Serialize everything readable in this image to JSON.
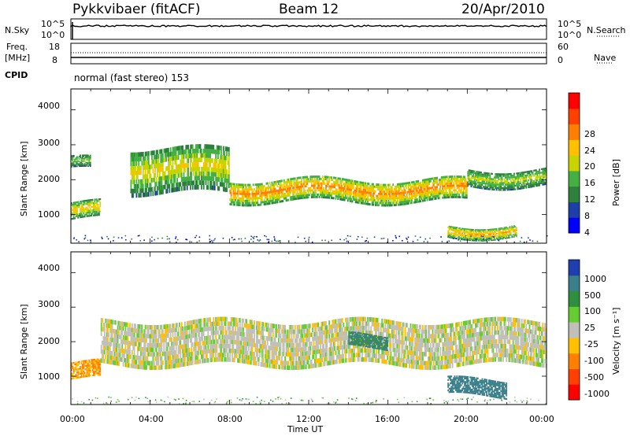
{
  "header": {
    "station": "Pykkvibaer (fitACF)",
    "beam": "Beam 12",
    "date": "20/Apr/2010"
  },
  "noise_panel": {
    "left_label": "N.Sky",
    "right_label": "N.Search",
    "left_ticks": [
      "10^5",
      "10^0"
    ],
    "right_ticks": [
      "10^5",
      "10^0"
    ]
  },
  "freq_panel": {
    "left_label_top": "Freq.",
    "left_label_unit": "[MHz]",
    "right_label": "Nave",
    "left_ticks": [
      "18",
      "8"
    ],
    "right_ticks": [
      "60",
      "0"
    ],
    "cpid_label": "CPID",
    "cpid_text": "normal (fast stereo) 153"
  },
  "chart_data": [
    {
      "type": "heatmap",
      "panel": "power",
      "ylabel": "Slant Range [km]",
      "ylim": [
        180,
        4600
      ],
      "yticks": [
        "1000",
        "2000",
        "3000",
        "4000"
      ],
      "xlim": [
        "00:00",
        "24:00"
      ],
      "colorbar_label": "Power [dB]",
      "colorbar_ticks": [
        "28",
        "24",
        "20",
        "16",
        "12",
        "8",
        "4"
      ],
      "colors": [
        "#0000ff",
        "#1e3fa8",
        "#2f7f3f",
        "#44b044",
        "#c8d400",
        "#ffc000",
        "#ff8000",
        "#ff4000",
        "#ff0000"
      ],
      "echo_bands": [
        {
          "t": [
            0.0,
            1.5
          ],
          "range": [
            850,
            1350
          ],
          "power": 20
        },
        {
          "t": [
            0.0,
            1.0
          ],
          "range": [
            2250,
            2600
          ],
          "power": 14
        },
        {
          "t": [
            3.0,
            8.0
          ],
          "range": [
            1600,
            2900
          ],
          "power": 18
        },
        {
          "t": [
            8.0,
            20.0
          ],
          "range": [
            1350,
            2000
          ],
          "power": 24
        },
        {
          "t": [
            20.0,
            24.0
          ],
          "range": [
            1800,
            2300
          ],
          "power": 16
        },
        {
          "t": [
            19.0,
            22.5
          ],
          "range": [
            350,
            700
          ],
          "power": 22
        }
      ]
    },
    {
      "type": "heatmap",
      "panel": "velocity",
      "ylabel": "Slant Range [km]",
      "ylim": [
        180,
        4600
      ],
      "yticks": [
        "1000",
        "2000",
        "3000",
        "4000"
      ],
      "xlabel": "Time UT",
      "xticks": [
        "00:00",
        "04:00",
        "08:00",
        "12:00",
        "16:00",
        "20:00",
        "00:00"
      ],
      "colorbar_label": "Velocity [m s⁻¹]",
      "colorbar_ticks": [
        "1000",
        "500",
        "100",
        "25",
        "-25",
        "-100",
        "-500",
        "-1000"
      ],
      "colors": [
        "#1f3fb0",
        "#3a7f8a",
        "#2f8f3f",
        "#66cc33",
        "#c0c0b8",
        "#ffc000",
        "#ff8000",
        "#ff4000",
        "#ff0000"
      ],
      "echo_bands": [
        {
          "t": [
            0.0,
            1.5
          ],
          "range": [
            900,
            1400
          ],
          "velocity": -100
        },
        {
          "t": [
            1.5,
            24.0
          ],
          "range": [
            1300,
            2600
          ],
          "velocity": 0
        },
        {
          "t": [
            14.0,
            16.0
          ],
          "range": [
            1800,
            2200
          ],
          "velocity": 300
        },
        {
          "t": [
            19.0,
            22.0
          ],
          "range": [
            400,
            900
          ],
          "velocity": 600
        }
      ]
    }
  ]
}
